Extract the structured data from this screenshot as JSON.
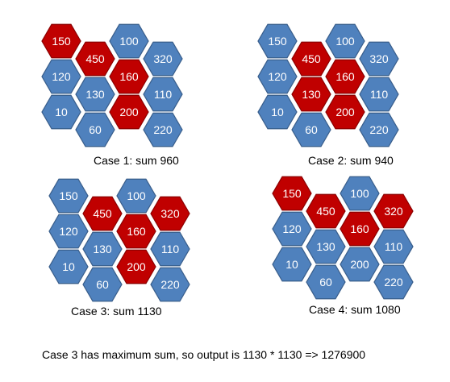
{
  "colors": {
    "blue_fill": "#4f81bd",
    "blue_stroke": "#385d8a",
    "red_fill": "#c00000",
    "red_stroke": "#8b0000",
    "text": "#ffffff"
  },
  "cases": [
    {
      "label": "Case 1:  sum 960",
      "cells": [
        {
          "value": "150",
          "selected": true
        },
        {
          "value": "100",
          "selected": false
        },
        {
          "value": "450",
          "selected": true
        },
        {
          "value": "320",
          "selected": false
        },
        {
          "value": "120",
          "selected": false
        },
        {
          "value": "160",
          "selected": true
        },
        {
          "value": "130",
          "selected": false
        },
        {
          "value": "110",
          "selected": false
        },
        {
          "value": "10",
          "selected": false
        },
        {
          "value": "200",
          "selected": true
        },
        {
          "value": "60",
          "selected": false
        },
        {
          "value": "220",
          "selected": false
        }
      ]
    },
    {
      "label": "Case 2:  sum 940",
      "cells": [
        {
          "value": "150",
          "selected": false
        },
        {
          "value": "100",
          "selected": false
        },
        {
          "value": "450",
          "selected": true
        },
        {
          "value": "320",
          "selected": false
        },
        {
          "value": "120",
          "selected": false
        },
        {
          "value": "160",
          "selected": true
        },
        {
          "value": "130",
          "selected": true
        },
        {
          "value": "110",
          "selected": false
        },
        {
          "value": "10",
          "selected": false
        },
        {
          "value": "200",
          "selected": true
        },
        {
          "value": "60",
          "selected": false
        },
        {
          "value": "220",
          "selected": false
        }
      ]
    },
    {
      "label": "Case 3:  sum 1130",
      "cells": [
        {
          "value": "150",
          "selected": false
        },
        {
          "value": "100",
          "selected": false
        },
        {
          "value": "450",
          "selected": true
        },
        {
          "value": "320",
          "selected": true
        },
        {
          "value": "120",
          "selected": false
        },
        {
          "value": "160",
          "selected": true
        },
        {
          "value": "130",
          "selected": false
        },
        {
          "value": "110",
          "selected": false
        },
        {
          "value": "10",
          "selected": false
        },
        {
          "value": "200",
          "selected": true
        },
        {
          "value": "60",
          "selected": false
        },
        {
          "value": "220",
          "selected": false
        }
      ]
    },
    {
      "label": "Case 4:  sum 1080",
      "cells": [
        {
          "value": "150",
          "selected": true
        },
        {
          "value": "100",
          "selected": false
        },
        {
          "value": "450",
          "selected": true
        },
        {
          "value": "320",
          "selected": true
        },
        {
          "value": "120",
          "selected": false
        },
        {
          "value": "160",
          "selected": true
        },
        {
          "value": "130",
          "selected": false
        },
        {
          "value": "110",
          "selected": false
        },
        {
          "value": "10",
          "selected": false
        },
        {
          "value": "200",
          "selected": false
        },
        {
          "value": "60",
          "selected": false
        },
        {
          "value": "220",
          "selected": false
        }
      ]
    }
  ],
  "conclusion": "Case 3 has maximum sum, so output is 1130 * 1130  => 1276900"
}
